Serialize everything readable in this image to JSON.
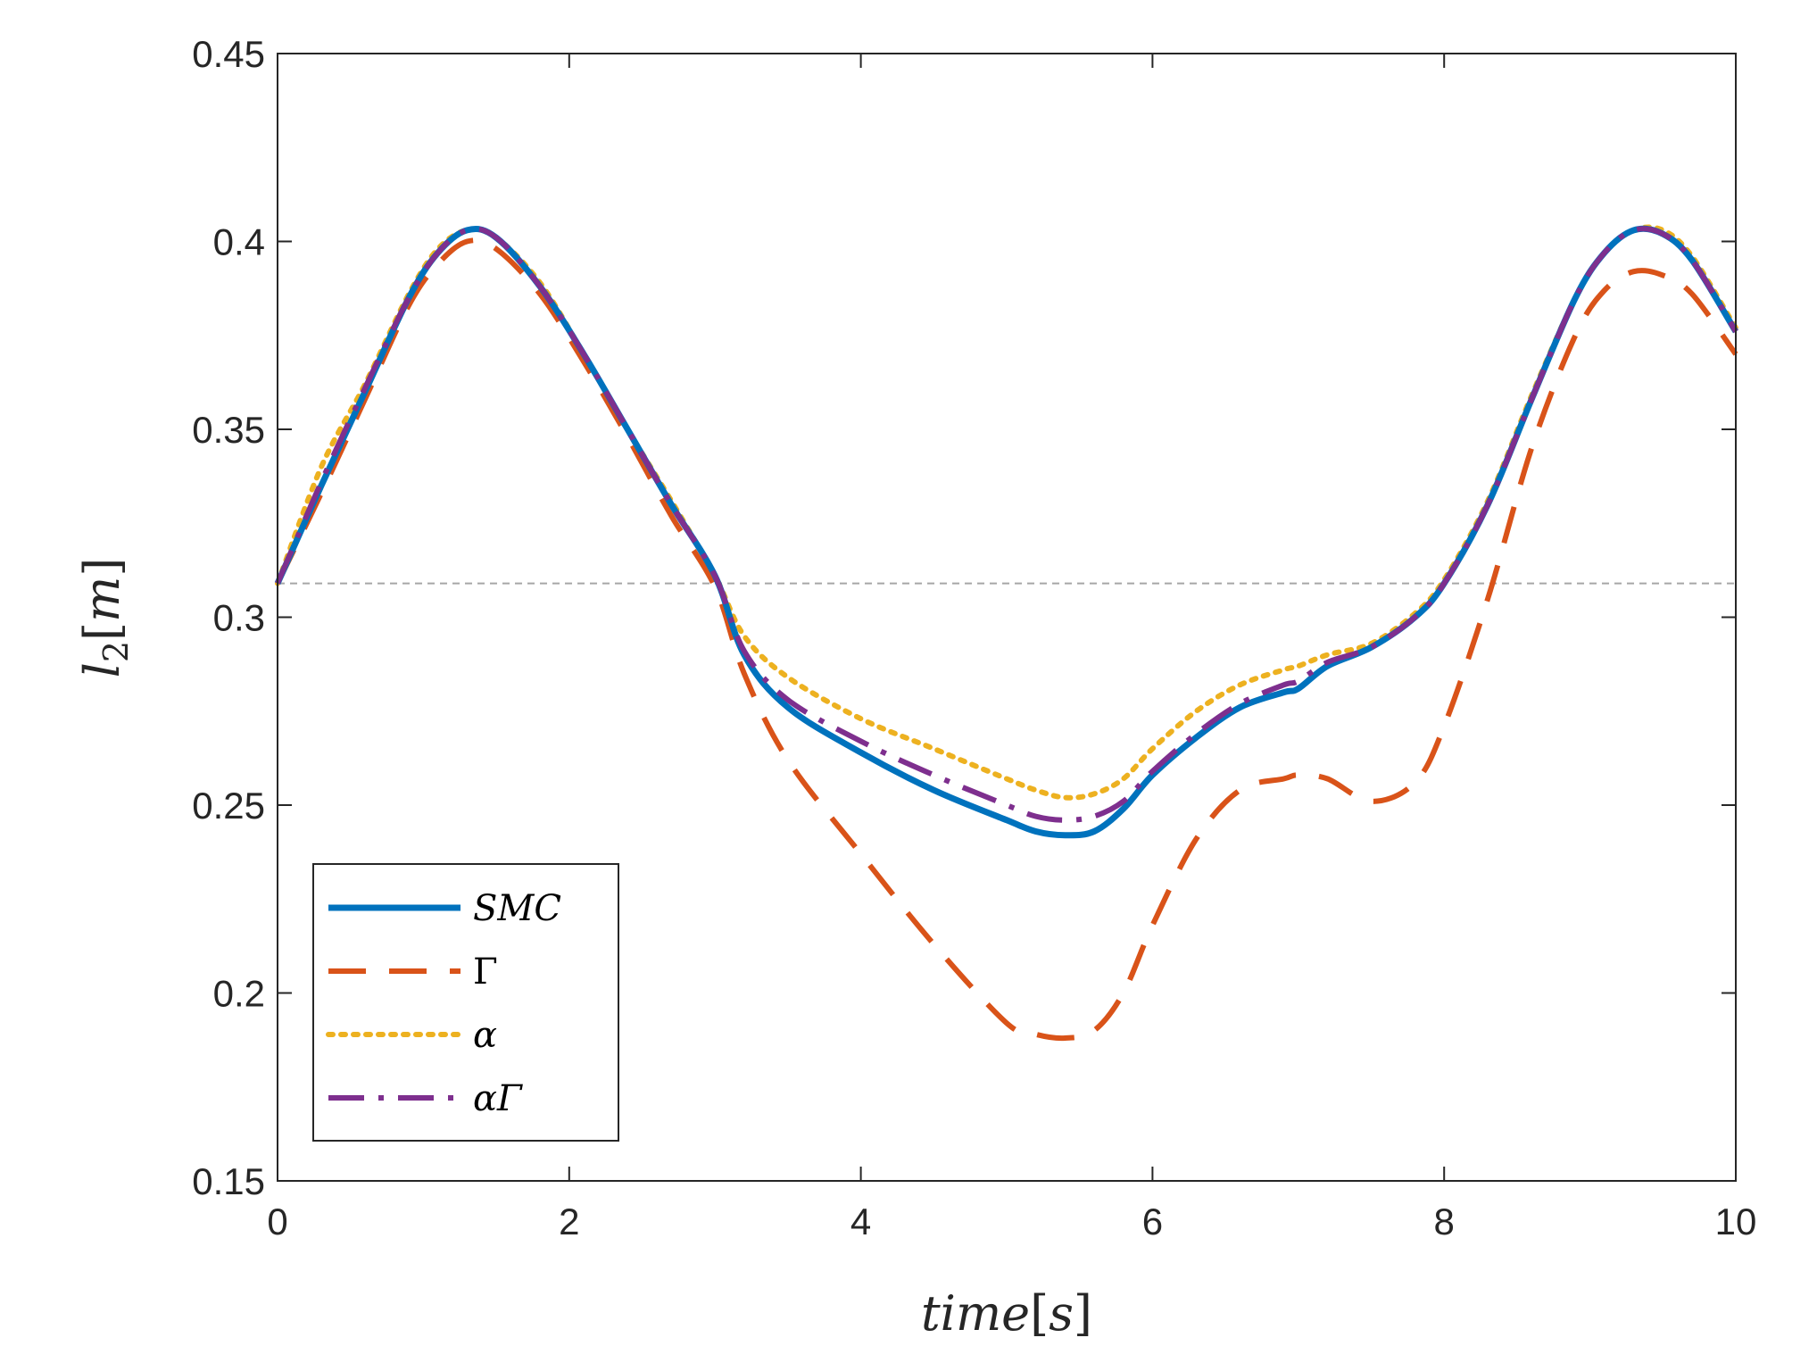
{
  "chart_data": {
    "type": "line",
    "title": "",
    "xlabel": "time[s]",
    "ylabel": "l2[m]",
    "xlabel_parts": [
      "time",
      "[",
      "s",
      "]"
    ],
    "ylabel_parts": [
      "l",
      "2",
      "[",
      "m",
      "]"
    ],
    "xlim": [
      0,
      10
    ],
    "ylim": [
      0.15,
      0.45
    ],
    "xticks": [
      0,
      2,
      4,
      6,
      8,
      10
    ],
    "yticks": [
      0.15,
      0.2,
      0.25,
      0.3,
      0.35,
      0.4,
      0.45
    ],
    "xtick_labels": [
      "0",
      "2",
      "4",
      "6",
      "8",
      "10"
    ],
    "ytick_labels": [
      "0.15",
      "0.2",
      "0.25",
      "0.3",
      "0.35",
      "0.4",
      "0.45"
    ],
    "grid": false,
    "legend_position": "bottom-left",
    "reference_line": {
      "y": 0.309,
      "color": "#a6a6a6",
      "style": "dashed"
    },
    "x": [
      0,
      0.3,
      0.6,
      0.9,
      1.1,
      1.3,
      1.5,
      1.8,
      2.1,
      2.4,
      2.7,
      3.0,
      3.2,
      3.5,
      4.0,
      4.5,
      5.0,
      5.2,
      5.4,
      5.6,
      5.8,
      6.0,
      6.3,
      6.6,
      6.9,
      7.0,
      7.2,
      7.5,
      7.8,
      8.0,
      8.3,
      8.6,
      8.9,
      9.1,
      9.3,
      9.5,
      9.7,
      10.0
    ],
    "series": [
      {
        "name": "SMC",
        "label_parts": [
          "SMC"
        ],
        "color": "#0072BD",
        "dash": "solid",
        "values": [
          0.309,
          0.335,
          0.36,
          0.385,
          0.397,
          0.403,
          0.401,
          0.388,
          0.37,
          0.35,
          0.33,
          0.311,
          0.29,
          0.276,
          0.264,
          0.254,
          0.246,
          0.243,
          0.242,
          0.243,
          0.249,
          0.258,
          0.268,
          0.276,
          0.28,
          0.281,
          0.287,
          0.292,
          0.3,
          0.309,
          0.33,
          0.358,
          0.385,
          0.397,
          0.403,
          0.402,
          0.395,
          0.376
        ]
      },
      {
        "name": "Γ",
        "label_parts": [
          "Γ"
        ],
        "color": "#D95319",
        "dash": "dashed",
        "values": [
          0.309,
          0.333,
          0.358,
          0.383,
          0.394,
          0.4,
          0.398,
          0.386,
          0.368,
          0.348,
          0.327,
          0.308,
          0.285,
          0.262,
          0.237,
          0.213,
          0.192,
          0.189,
          0.188,
          0.19,
          0.2,
          0.218,
          0.241,
          0.254,
          0.257,
          0.258,
          0.257,
          0.251,
          0.256,
          0.271,
          0.305,
          0.345,
          0.375,
          0.387,
          0.392,
          0.391,
          0.386,
          0.37
        ]
      },
      {
        "name": "α",
        "label_parts": [
          "α"
        ],
        "color": "#EDB120",
        "dash": "dotted",
        "values": [
          0.309,
          0.34,
          0.362,
          0.386,
          0.398,
          0.403,
          0.401,
          0.389,
          0.37,
          0.35,
          0.331,
          0.311,
          0.295,
          0.284,
          0.273,
          0.265,
          0.257,
          0.254,
          0.252,
          0.253,
          0.257,
          0.265,
          0.275,
          0.282,
          0.286,
          0.287,
          0.29,
          0.293,
          0.301,
          0.31,
          0.331,
          0.359,
          0.385,
          0.397,
          0.403,
          0.403,
          0.396,
          0.377
        ]
      },
      {
        "name": "αΓ",
        "label_parts": [
          "αΓ"
        ],
        "color": "#7E2F8E",
        "dash": "dashdot",
        "values": [
          0.309,
          0.336,
          0.361,
          0.385,
          0.397,
          0.403,
          0.401,
          0.388,
          0.37,
          0.35,
          0.33,
          0.311,
          0.291,
          0.278,
          0.267,
          0.258,
          0.25,
          0.247,
          0.246,
          0.247,
          0.251,
          0.259,
          0.269,
          0.277,
          0.282,
          0.283,
          0.288,
          0.292,
          0.3,
          0.309,
          0.33,
          0.358,
          0.385,
          0.397,
          0.403,
          0.402,
          0.395,
          0.376
        ]
      }
    ]
  }
}
